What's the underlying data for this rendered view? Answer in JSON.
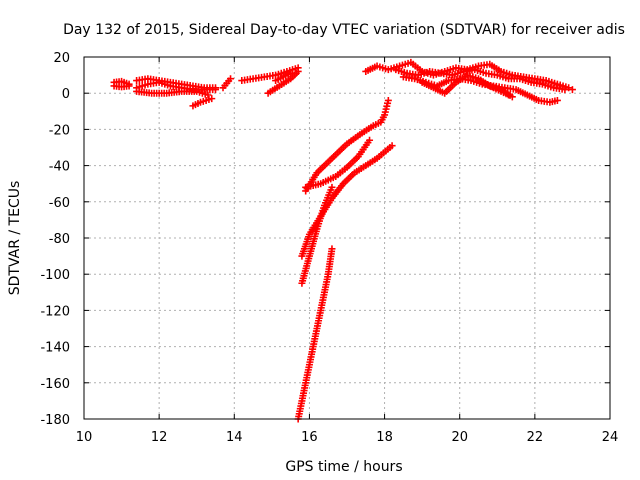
{
  "chart_data": {
    "type": "scatter",
    "title": "Day 132 of 2015, Sidereal Day-to-day VTEC variation (SDTVAR) for receiver adis",
    "xlabel": "GPS time / hours",
    "ylabel": "SDTVAR / TECUs",
    "xlim": [
      10,
      24
    ],
    "ylim": [
      -180,
      20
    ],
    "x_ticks": [
      "10",
      "12",
      "14",
      "16",
      "18",
      "20",
      "22",
      "24"
    ],
    "y_ticks": [
      "20",
      "0",
      "-20",
      "-40",
      "-60",
      "-80",
      "-100",
      "-120",
      "-140",
      "-160",
      "-180"
    ],
    "grid": true,
    "legend": "none",
    "marker": "plus",
    "colors": {
      "series": "#ff0000",
      "grid": "#b0b0b0",
      "axis": "#000000"
    },
    "segments": [
      {
        "x": [
          10.8,
          11.0,
          11.2
        ],
        "y": [
          6,
          6.5,
          5
        ]
      },
      {
        "x": [
          10.8,
          11.0,
          11.2
        ],
        "y": [
          4,
          3.5,
          4
        ]
      },
      {
        "x": [
          11.4,
          11.7,
          12.0,
          12.3,
          12.6,
          12.9,
          13.2,
          13.5
        ],
        "y": [
          7,
          8,
          7,
          6,
          5,
          4,
          3,
          3
        ]
      },
      {
        "x": [
          11.4,
          11.7,
          12.0,
          12.3,
          12.6,
          12.9,
          13.2,
          13.5
        ],
        "y": [
          3,
          5,
          6,
          4,
          3,
          2,
          2,
          2
        ]
      },
      {
        "x": [
          11.4,
          11.8,
          12.2,
          12.6,
          13.0,
          13.3
        ],
        "y": [
          1,
          0,
          0,
          1,
          1,
          -1
        ]
      },
      {
        "x": [
          12.9,
          13.1,
          13.4
        ],
        "y": [
          -7,
          -5,
          -3
        ]
      },
      {
        "x": [
          13.7,
          13.9
        ],
        "y": [
          3,
          8
        ]
      },
      {
        "x": [
          14.2,
          14.5,
          14.8,
          15.1,
          15.4,
          15.7
        ],
        "y": [
          7,
          8,
          9,
          10,
          12,
          14
        ]
      },
      {
        "x": [
          14.9,
          15.2,
          15.5,
          15.7
        ],
        "y": [
          0,
          4,
          8,
          12
        ]
      },
      {
        "x": [
          15.1,
          15.3,
          15.5
        ],
        "y": [
          7,
          9,
          11
        ]
      },
      {
        "x": [
          15.9,
          16.2,
          16.6,
          17.0,
          17.4,
          17.7,
          17.9,
          18.0,
          18.1
        ],
        "y": [
          -54,
          -44,
          -36,
          -28,
          -22,
          -18,
          -16,
          -12,
          -4
        ]
      },
      {
        "x": [
          15.9,
          16.3,
          16.7,
          17.0,
          17.3,
          17.6
        ],
        "y": [
          -52,
          -50,
          -46,
          -41,
          -35,
          -26
        ]
      },
      {
        "x": [
          15.8,
          16.0,
          16.3,
          16.6,
          16.9,
          17.2,
          17.5,
          17.8,
          18.2
        ],
        "y": [
          -90,
          -78,
          -68,
          -58,
          -50,
          -44,
          -40,
          -36,
          -29
        ]
      },
      {
        "x": [
          15.8,
          16.0,
          16.2,
          16.4,
          16.6
        ],
        "y": [
          -105,
          -90,
          -75,
          -62,
          -52
        ]
      },
      {
        "x": [
          15.7,
          15.9,
          16.1,
          16.3,
          16.5,
          16.6
        ],
        "y": [
          -180,
          -160,
          -140,
          -120,
          -100,
          -86
        ]
      },
      {
        "x": [
          17.5,
          17.8,
          18.1,
          18.4,
          18.7,
          19.0,
          19.3,
          19.6,
          19.9,
          20.2,
          20.5,
          20.8,
          21.1,
          21.4,
          21.7,
          22.0,
          22.3,
          22.6,
          22.9,
          23.0
        ],
        "y": [
          12,
          15,
          13,
          15,
          17,
          12,
          10,
          12,
          14,
          13,
          15,
          16,
          12,
          10,
          9,
          8,
          7,
          5,
          3,
          2
        ]
      },
      {
        "x": [
          18.3,
          18.6,
          18.9,
          19.2,
          19.5,
          19.8,
          20.1,
          20.4,
          20.7,
          21.0,
          21.3,
          21.6,
          21.9,
          22.2,
          22.5,
          22.8
        ],
        "y": [
          13,
          11,
          10,
          12,
          11,
          10,
          12,
          13,
          11,
          10,
          8,
          8,
          6,
          5,
          3,
          2
        ]
      },
      {
        "x": [
          18.5,
          18.8,
          19.1,
          19.4,
          19.7,
          20.0,
          20.3,
          20.6,
          20.9,
          21.2,
          21.5,
          21.8,
          22.1,
          22.4,
          22.6
        ],
        "y": [
          9,
          8,
          6,
          4,
          7,
          8,
          7,
          5,
          4,
          3,
          2,
          -1,
          -4,
          -5,
          -4
        ]
      },
      {
        "x": [
          19.0,
          19.3,
          19.6,
          19.9,
          20.2,
          20.5,
          20.8,
          21.1,
          21.4
        ],
        "y": [
          6,
          3,
          0,
          6,
          10,
          8,
          4,
          2,
          -2
        ]
      },
      {
        "x": [
          20.5,
          20.9,
          21.3
        ],
        "y": [
          7,
          3,
          -1
        ]
      }
    ]
  }
}
